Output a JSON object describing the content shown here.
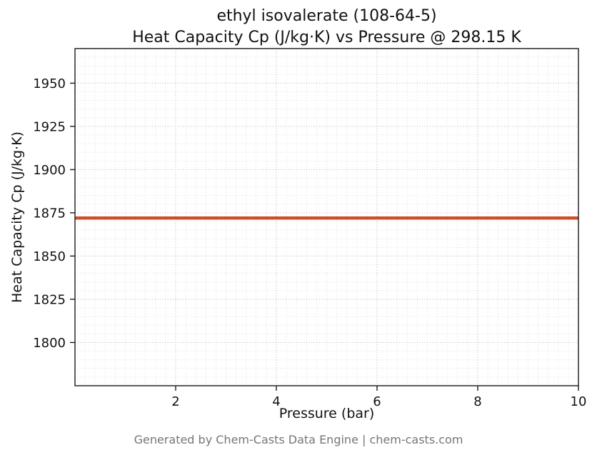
{
  "title": {
    "line1": "ethyl isovalerate (108-64-5)",
    "line2": "Heat Capacity Cp (J/kg·K) vs Pressure @ 298.15 K"
  },
  "footer": "Generated by Chem-Casts Data Engine | chem-casts.com",
  "chart_data": {
    "type": "line",
    "title": "ethyl isovalerate (108-64-5)\nHeat Capacity Cp (J/kg·K) vs Pressure @ 298.15 K",
    "xlabel": "Pressure (bar)",
    "ylabel": "Heat Capacity Cp (J/kg·K)",
    "xlim": [
      0,
      10
    ],
    "ylim": [
      1775,
      1970
    ],
    "x_ticks": [
      2,
      4,
      6,
      8,
      10
    ],
    "y_ticks": [
      1800,
      1825,
      1850,
      1875,
      1900,
      1925,
      1950
    ],
    "x_minor_step": 0.2,
    "y_minor_step": 5,
    "grid": true,
    "legend": "none",
    "series": [
      {
        "name": "Heat Capacity Cp",
        "color": "#cc4f27",
        "x": [
          0,
          10
        ],
        "y": [
          1872,
          1872
        ]
      }
    ],
    "colors": {
      "major_grid": "#c3c3c3",
      "minor_grid": "#dedede",
      "axis_border": "#1a1a1a",
      "background": "#ffffff"
    }
  }
}
